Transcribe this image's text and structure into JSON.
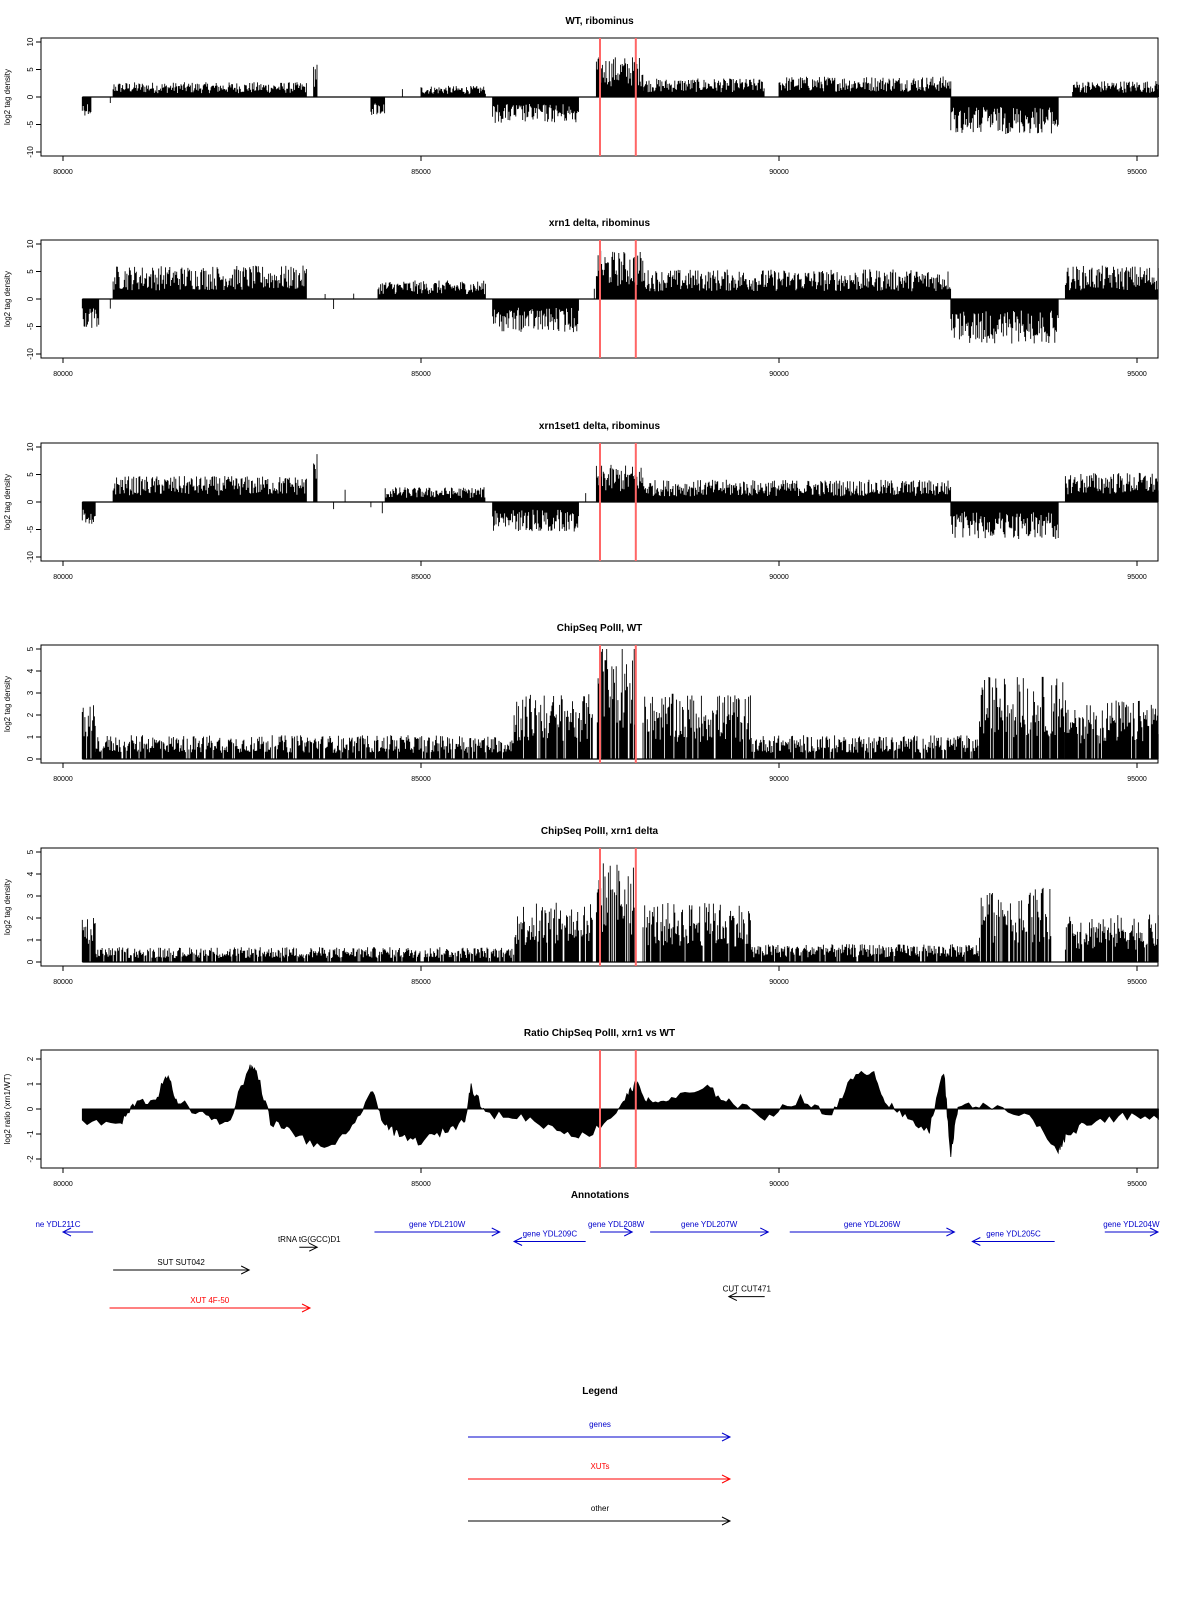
{
  "chart_data": {
    "type": "genome-track-figure",
    "xlim": [
      80000,
      95000
    ],
    "x_ticks": [
      80000,
      85000,
      90000,
      95000
    ],
    "highlight_x": [
      87500,
      88000
    ],
    "panels": [
      {
        "id": "wt-ribominus",
        "type": "bar",
        "title": "WT, ribominus",
        "ylabel": "log2 tag density",
        "ylim": [
          -10,
          10
        ],
        "y_ticks": [
          -10,
          -5,
          0,
          5,
          10
        ],
        "segments": [
          {
            "x": [
              80270,
              80400
            ],
            "sign": -1,
            "level": 2.5
          },
          {
            "x": [
              80700,
              83400
            ],
            "sign": 1,
            "level": 2.0
          },
          {
            "x": [
              83500,
              83550
            ],
            "sign": 1,
            "level": 5.0
          },
          {
            "x": [
              84300,
              84500
            ],
            "sign": -1,
            "level": 2.5
          },
          {
            "x": [
              85000,
              85900
            ],
            "sign": 1,
            "level": 1.5
          },
          {
            "x": [
              86000,
              87200
            ],
            "sign": -1,
            "level": 3.5
          },
          {
            "x": [
              87450,
              88100
            ],
            "sign": 1,
            "level": 5.5
          },
          {
            "x": [
              88100,
              89800
            ],
            "sign": 1,
            "level": 2.5
          },
          {
            "x": [
              90000,
              92400
            ],
            "sign": 1,
            "level": 2.8
          },
          {
            "x": [
              92400,
              93900
            ],
            "sign": -1,
            "level": 5.0
          },
          {
            "x": [
              94100,
              95300
            ],
            "sign": 1,
            "level": 2.2
          }
        ]
      },
      {
        "id": "xrn1-ribominus",
        "type": "bar",
        "title": "xrn1 delta, ribominus",
        "ylabel": "log2 tag density",
        "ylim": [
          -10,
          10
        ],
        "y_ticks": [
          -10,
          -5,
          0,
          5,
          10
        ],
        "segments": [
          {
            "x": [
              80270,
              80500
            ],
            "sign": -1,
            "level": 4.0
          },
          {
            "x": [
              80700,
              83400
            ],
            "sign": 1,
            "level": 4.5
          },
          {
            "x": [
              84400,
              85900
            ],
            "sign": 1,
            "level": 2.5
          },
          {
            "x": [
              86000,
              87200
            ],
            "sign": -1,
            "level": 4.5
          },
          {
            "x": [
              87450,
              88100
            ],
            "sign": 1,
            "level": 6.5
          },
          {
            "x": [
              88100,
              92400
            ],
            "sign": 1,
            "level": 4.0
          },
          {
            "x": [
              92400,
              93900
            ],
            "sign": -1,
            "level": 6.0
          },
          {
            "x": [
              94000,
              95300
            ],
            "sign": 1,
            "level": 4.5
          }
        ]
      },
      {
        "id": "xrn1set1-ribominus",
        "type": "bar",
        "title": "xrn1set1 delta, ribominus",
        "ylabel": "log2 tag density",
        "ylim": [
          -10,
          10
        ],
        "y_ticks": [
          -10,
          -5,
          0,
          5,
          10
        ],
        "segments": [
          {
            "x": [
              80270,
              80450
            ],
            "sign": -1,
            "level": 3.0
          },
          {
            "x": [
              80700,
              83400
            ],
            "sign": 1,
            "level": 3.5
          },
          {
            "x": [
              83500,
              83550
            ],
            "sign": 1,
            "level": 7.0
          },
          {
            "x": [
              84500,
              85900
            ],
            "sign": 1,
            "level": 2.0
          },
          {
            "x": [
              86000,
              87200
            ],
            "sign": -1,
            "level": 4.0
          },
          {
            "x": [
              87450,
              88100
            ],
            "sign": 1,
            "level": 5.0
          },
          {
            "x": [
              88100,
              92400
            ],
            "sign": 1,
            "level": 3.0
          },
          {
            "x": [
              92400,
              93900
            ],
            "sign": -1,
            "level": 5.0
          },
          {
            "x": [
              94000,
              95300
            ],
            "sign": 1,
            "level": 4.0
          }
        ]
      },
      {
        "id": "chipseq-wt",
        "type": "bar",
        "title": "ChipSeq PolII, WT",
        "ylabel": "log2 tag density",
        "ylim": [
          0,
          5
        ],
        "y_ticks": [
          0,
          1,
          2,
          3,
          4,
          5
        ],
        "segments": [
          {
            "x": [
              80270,
              80450
            ],
            "sign": 1,
            "level": 2.0
          },
          {
            "x": [
              80450,
              86300
            ],
            "sign": 1,
            "level": 0.8
          },
          {
            "x": [
              86300,
              87400
            ],
            "sign": 1,
            "level": 2.2
          },
          {
            "x": [
              87450,
              88000
            ],
            "sign": 1,
            "level": 4.0
          },
          {
            "x": [
              88100,
              89600
            ],
            "sign": 1,
            "level": 2.2
          },
          {
            "x": [
              89600,
              92800
            ],
            "sign": 1,
            "level": 0.8
          },
          {
            "x": [
              92800,
              94000
            ],
            "sign": 1,
            "level": 2.8
          },
          {
            "x": [
              94000,
              95300
            ],
            "sign": 1,
            "level": 2.0
          }
        ]
      },
      {
        "id": "chipseq-xrn1",
        "type": "bar",
        "title": "ChipSeq PolII, xrn1 delta",
        "ylabel": "log2 tag density",
        "ylim": [
          0,
          5
        ],
        "y_ticks": [
          0,
          1,
          2,
          3,
          4,
          5
        ],
        "segments": [
          {
            "x": [
              80270,
              80450
            ],
            "sign": 1,
            "level": 1.5
          },
          {
            "x": [
              80450,
              86300
            ],
            "sign": 1,
            "level": 0.5
          },
          {
            "x": [
              86300,
              87400
            ],
            "sign": 1,
            "level": 2.0
          },
          {
            "x": [
              87450,
              88000
            ],
            "sign": 1,
            "level": 3.4
          },
          {
            "x": [
              88100,
              89600
            ],
            "sign": 1,
            "level": 2.0
          },
          {
            "x": [
              89600,
              92800
            ],
            "sign": 1,
            "level": 0.6
          },
          {
            "x": [
              92800,
              93800
            ],
            "sign": 1,
            "level": 2.5
          },
          {
            "x": [
              94000,
              95300
            ],
            "sign": 1,
            "level": 1.6
          }
        ]
      },
      {
        "id": "ratio-chipseq",
        "type": "area",
        "title": "Ratio ChipSeq PolII, xrn1 vs WT",
        "ylabel": "log2 ratio (xrn1/WT)",
        "ylim": [
          -2.2,
          2.2
        ],
        "y_ticks": [
          -2,
          -1,
          0,
          1,
          2
        ],
        "series": {
          "x": [
            80270,
            80800,
            81000,
            81300,
            81450,
            81600,
            82000,
            82300,
            82600,
            82700,
            82900,
            83200,
            83600,
            84000,
            84300,
            84500,
            84700,
            85000,
            85300,
            85600,
            85700,
            85900,
            86400,
            86900,
            87300,
            87700,
            87900,
            88000,
            88200,
            88500,
            89000,
            89300,
            89800,
            90300,
            90700,
            91000,
            91300,
            91500,
            91800,
            92100,
            92300,
            92400,
            92500,
            92900,
            93500,
            93900,
            94000,
            94300,
            94800,
            95300
          ],
          "y": [
            -0.5,
            -0.6,
            0.2,
            0.4,
            1.3,
            0.3,
            -0.3,
            -0.6,
            1.7,
            1.5,
            -0.5,
            -0.9,
            -1.6,
            -1.0,
            0.7,
            -0.6,
            -1.1,
            -1.3,
            -0.9,
            -0.5,
            0.9,
            -0.2,
            -0.3,
            -0.8,
            -1.1,
            -0.2,
            0.6,
            1.0,
            0.2,
            0.4,
            0.8,
            0.3,
            -0.3,
            0.4,
            -0.3,
            1.1,
            1.6,
            0.2,
            -0.4,
            -0.8,
            1.5,
            -1.8,
            0.2,
            0.1,
            -0.3,
            -1.6,
            -1.1,
            -0.5,
            -0.3,
            -0.4
          ]
        }
      }
    ]
  },
  "annotations": {
    "title": "Annotations",
    "items": [
      {
        "label": "ne YDL211C",
        "x0": 80000,
        "x1": 80420,
        "dir": "left",
        "row": 0,
        "color": "#0000cc"
      },
      {
        "label": "SUT SUT042",
        "x0": 80700,
        "x1": 82600,
        "dir": "right",
        "row": 1,
        "color": "#000000"
      },
      {
        "label": "XUT 4F-50",
        "x0": 80650,
        "x1": 83450,
        "dir": "right",
        "row": 2,
        "color": "#ff0000"
      },
      {
        "label": "tRNA tG(GCC)D1",
        "x0": 83300,
        "x1": 83550,
        "dir": "right",
        "row": 0.4,
        "color": "#000000"
      },
      {
        "label": "gene YDL210W",
        "x0": 84350,
        "x1": 86100,
        "dir": "right",
        "row": 0,
        "color": "#0000cc"
      },
      {
        "label": "gene YDL209C",
        "x0": 86300,
        "x1": 87300,
        "dir": "left",
        "row": 0.25,
        "color": "#0000cc"
      },
      {
        "label": "gene YDL208W",
        "x0": 87500,
        "x1": 87950,
        "dir": "right",
        "row": 0,
        "color": "#0000cc"
      },
      {
        "label": "gene YDL207W",
        "x0": 88200,
        "x1": 89850,
        "dir": "right",
        "row": 0,
        "color": "#0000cc"
      },
      {
        "label": "gene YDL206W",
        "x0": 90150,
        "x1": 92450,
        "dir": "right",
        "row": 0,
        "color": "#0000cc"
      },
      {
        "label": "gene YDL205C",
        "x0": 92700,
        "x1": 93850,
        "dir": "left",
        "row": 0.25,
        "color": "#0000cc"
      },
      {
        "label": "gene YDL204W",
        "x0": 94550,
        "x1": 95800,
        "dir": "right",
        "row": 0,
        "color": "#0000cc"
      },
      {
        "label": "CUT CUT471",
        "x0": 89300,
        "x1": 89800,
        "dir": "left",
        "row": 1.7,
        "color": "#000000"
      }
    ]
  },
  "legend": {
    "title": "Legend",
    "items": [
      {
        "label": "genes",
        "color": "#0000cc"
      },
      {
        "label": "XUTs",
        "color": "#ff0000"
      },
      {
        "label": "other",
        "color": "#000000"
      }
    ]
  }
}
